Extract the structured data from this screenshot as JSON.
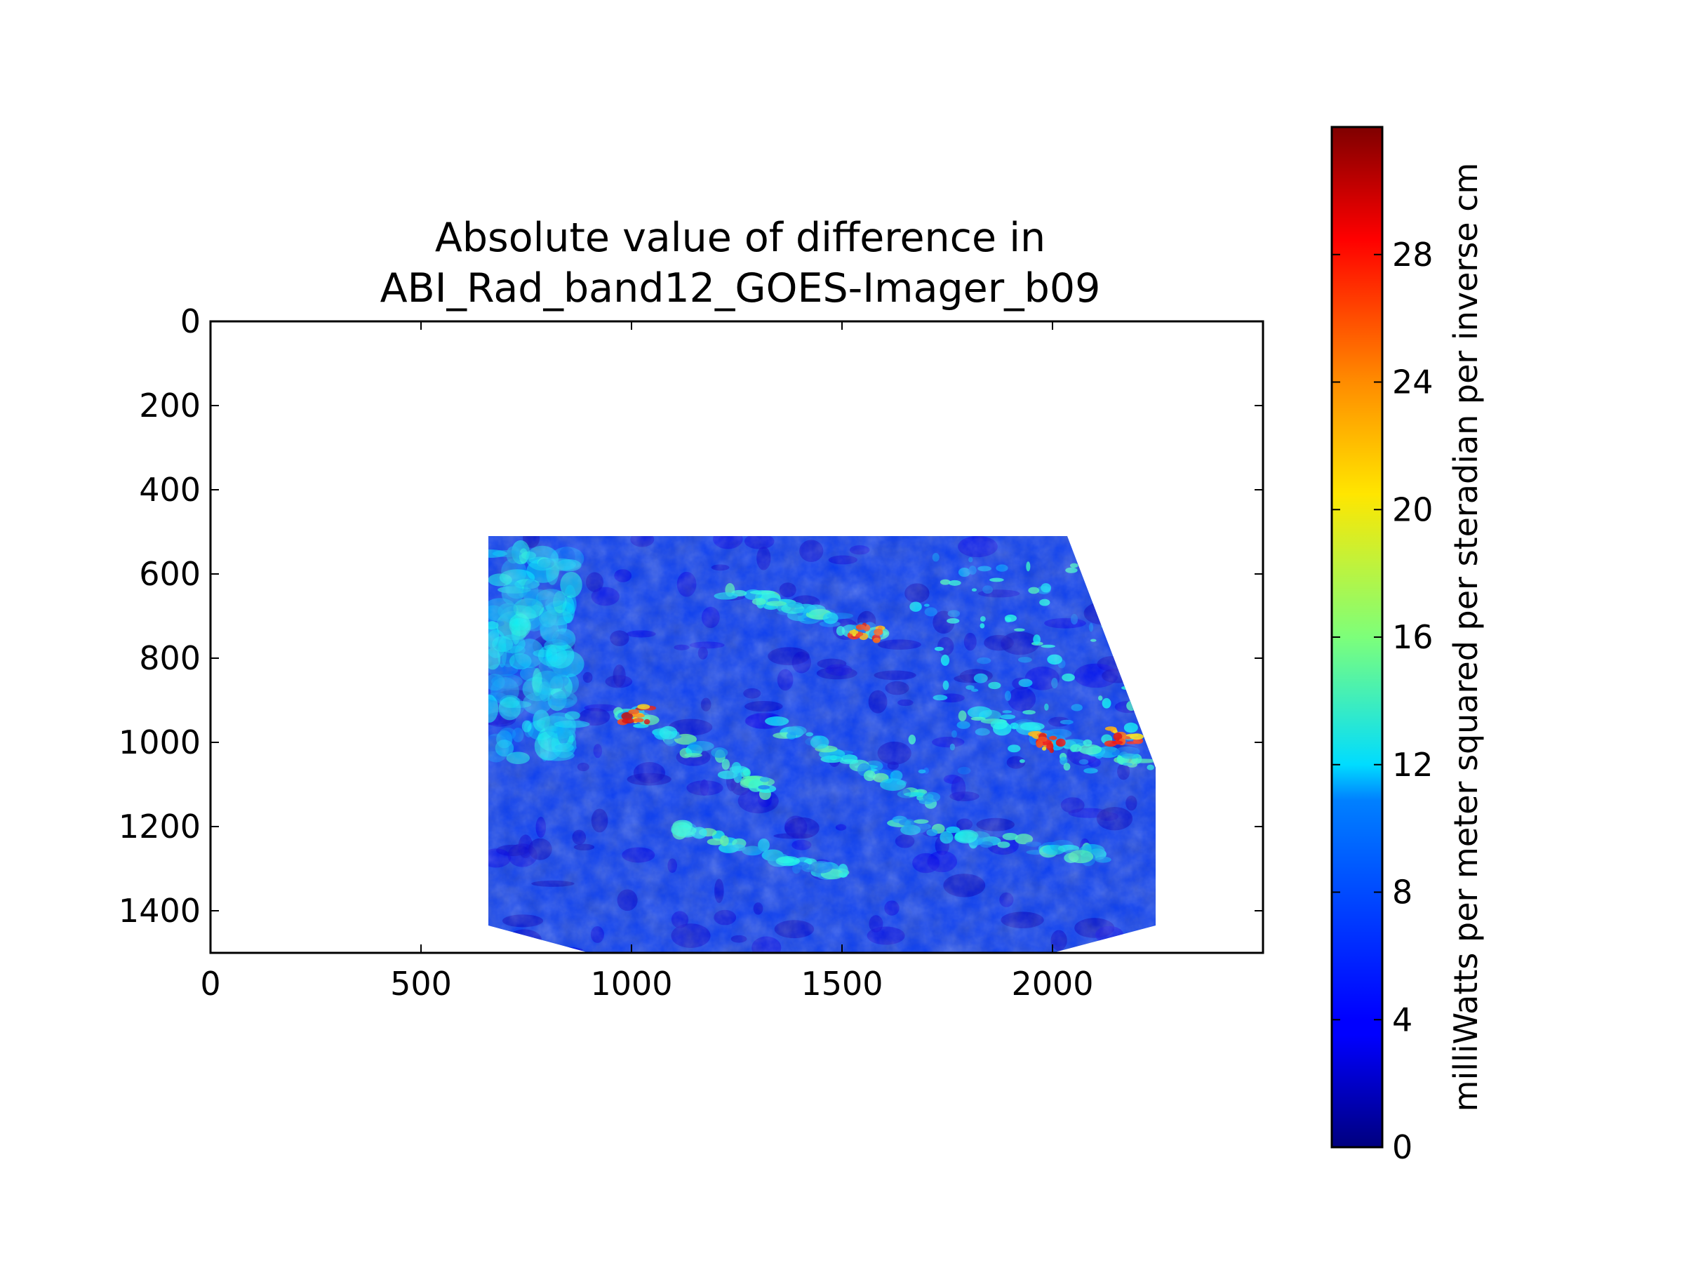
{
  "chart_data": [
    {
      "type": "heatmap",
      "title": [
        "Absolute value of difference in",
        "ABI_Rad_band12_GOES-Imager_b09"
      ],
      "xlabel": "",
      "ylabel": "",
      "xlim": [
        0,
        2500
      ],
      "ylim": [
        1500,
        0
      ],
      "y_inverted": true,
      "x_ticks": [
        0,
        500,
        1000,
        1500,
        2000
      ],
      "y_ticks": [
        0,
        200,
        400,
        600,
        800,
        1000,
        1200,
        1400
      ],
      "grid": false,
      "colormap": "jet",
      "data_region": {
        "description": "swath of valid data, blank elsewhere",
        "x_range": [
          660,
          2245
        ],
        "y_range": [
          510,
          1500
        ],
        "boundary": [
          [
            660,
            510
          ],
          [
            2035,
            510
          ],
          [
            2245,
            1060
          ],
          [
            2245,
            1435
          ],
          [
            2000,
            1500
          ],
          [
            900,
            1500
          ],
          [
            660,
            1435
          ]
        ]
      },
      "value_summary": {
        "dominant_range": [
          2,
          7
        ],
        "bright_bands_range": [
          9,
          14
        ],
        "hotspots_range": [
          20,
          30
        ],
        "hotspots_locations": [
          {
            "x": 1010,
            "y": 935
          },
          {
            "x": 1560,
            "y": 740
          },
          {
            "x": 1990,
            "y": 1000
          },
          {
            "x": 2170,
            "y": 985
          }
        ]
      }
    },
    {
      "type": "colorbar",
      "label": "milliWatts per meter squared per steradian per inverse cm",
      "range": [
        0,
        32
      ],
      "ticks": [
        0,
        4,
        8,
        12,
        16,
        20,
        24,
        28
      ],
      "colormap": "jet"
    }
  ]
}
